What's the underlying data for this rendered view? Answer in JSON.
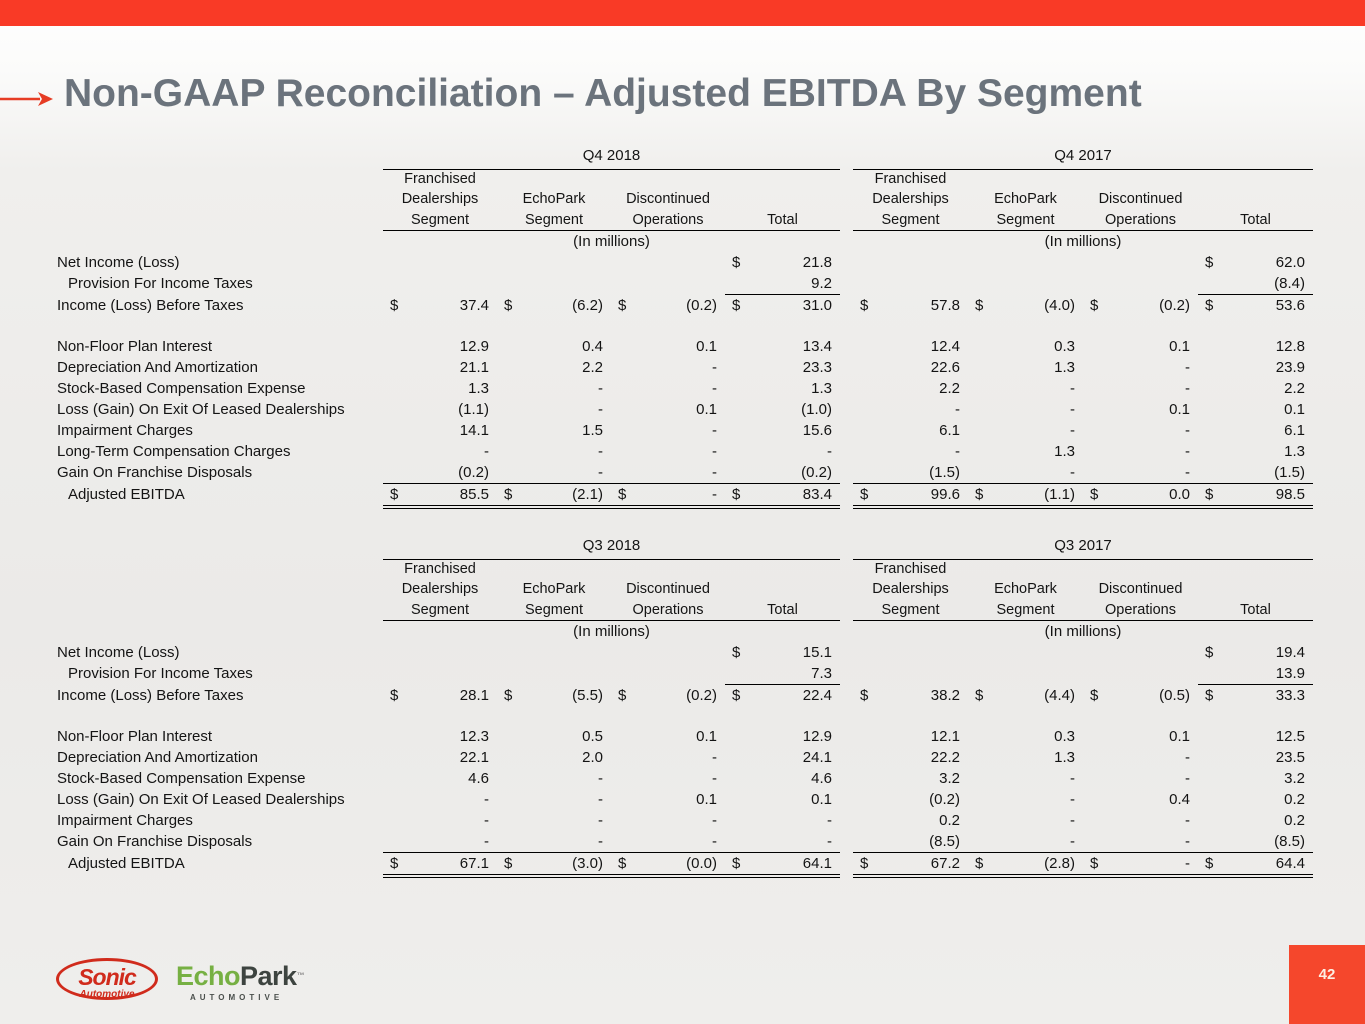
{
  "slide": {
    "title": "Non-GAAP Reconciliation – Adjusted EBITDA By Segment",
    "page_number": "42"
  },
  "colors": {
    "accent_red": "#f93a26",
    "title_gray": "#6b737c",
    "sonic_red": "#d02b1c",
    "echopark_green": "#76b043"
  },
  "footer": {
    "sonic_logo_word": "Sonic",
    "sonic_logo_sub": "Automotive",
    "echopark_logo_green": "Echo",
    "echopark_logo_dark": "Park",
    "echopark_tm": "™",
    "echopark_sub": "AUTOMOTIVE"
  },
  "table_headers": {
    "columns": [
      "Franchised\nDealerships\nSegment",
      "EchoPark\nSegment",
      "Discontinued\nOperations",
      "Total"
    ],
    "note": "(In millions)"
  },
  "tables": [
    {
      "quarters": [
        "Q4 2018",
        "Q4 2017"
      ],
      "rows": [
        {
          "label": "Net Income (Loss)",
          "cells": [
            [
              {},
              {},
              {},
              {
                "d": "$",
                "v": "21.8"
              }
            ],
            [
              {},
              {},
              {},
              {
                "d": "$",
                "v": "62.0"
              }
            ]
          ]
        },
        {
          "label": "Provision For Income Taxes",
          "indent": true,
          "cells": [
            [
              {},
              {},
              {},
              {
                "v": "9.2",
                "u": true
              }
            ],
            [
              {},
              {},
              {},
              {
                "v": "(8.4)",
                "u": true
              }
            ]
          ]
        },
        {
          "label": "Income (Loss) Before Taxes",
          "cells": [
            [
              {
                "d": "$",
                "v": "37.4"
              },
              {
                "d": "$",
                "v": "(6.2)"
              },
              {
                "d": "$",
                "v": "(0.2)"
              },
              {
                "d": "$",
                "v": "31.0"
              }
            ],
            [
              {
                "d": "$",
                "v": "57.8"
              },
              {
                "d": "$",
                "v": "(4.0)"
              },
              {
                "d": "$",
                "v": "(0.2)"
              },
              {
                "d": "$",
                "v": "53.6"
              }
            ]
          ]
        },
        {
          "blank": true
        },
        {
          "label": "Non-Floor Plan Interest",
          "cells": [
            [
              {
                "v": "12.9"
              },
              {
                "v": "0.4"
              },
              {
                "v": "0.1"
              },
              {
                "v": "13.4"
              }
            ],
            [
              {
                "v": "12.4"
              },
              {
                "v": "0.3"
              },
              {
                "v": "0.1"
              },
              {
                "v": "12.8"
              }
            ]
          ]
        },
        {
          "label": "Depreciation And Amortization",
          "cells": [
            [
              {
                "v": "21.1"
              },
              {
                "v": "2.2"
              },
              {
                "v": "-"
              },
              {
                "v": "23.3"
              }
            ],
            [
              {
                "v": "22.6"
              },
              {
                "v": "1.3"
              },
              {
                "v": "-"
              },
              {
                "v": "23.9"
              }
            ]
          ]
        },
        {
          "label": "Stock-Based Compensation Expense",
          "cells": [
            [
              {
                "v": "1.3"
              },
              {
                "v": "-"
              },
              {
                "v": "-"
              },
              {
                "v": "1.3"
              }
            ],
            [
              {
                "v": "2.2"
              },
              {
                "v": "-"
              },
              {
                "v": "-"
              },
              {
                "v": "2.2"
              }
            ]
          ]
        },
        {
          "label": "Loss (Gain) On Exit Of Leased Dealerships",
          "cells": [
            [
              {
                "v": "(1.1)"
              },
              {
                "v": "-"
              },
              {
                "v": "0.1"
              },
              {
                "v": "(1.0)"
              }
            ],
            [
              {
                "v": "-"
              },
              {
                "v": "-"
              },
              {
                "v": "0.1"
              },
              {
                "v": "0.1"
              }
            ]
          ]
        },
        {
          "label": "Impairment Charges",
          "cells": [
            [
              {
                "v": "14.1"
              },
              {
                "v": "1.5"
              },
              {
                "v": "-"
              },
              {
                "v": "15.6"
              }
            ],
            [
              {
                "v": "6.1"
              },
              {
                "v": "-"
              },
              {
                "v": "-"
              },
              {
                "v": "6.1"
              }
            ]
          ]
        },
        {
          "label": "Long-Term Compensation Charges",
          "cells": [
            [
              {
                "v": "-"
              },
              {
                "v": "-"
              },
              {
                "v": "-"
              },
              {
                "v": "-"
              }
            ],
            [
              {
                "v": "-"
              },
              {
                "v": "1.3"
              },
              {
                "v": "-"
              },
              {
                "v": "1.3"
              }
            ]
          ]
        },
        {
          "label": "Gain On Franchise Disposals",
          "rule": "single",
          "cells": [
            [
              {
                "v": "(0.2)"
              },
              {
                "v": "-"
              },
              {
                "v": "-"
              },
              {
                "v": "(0.2)"
              }
            ],
            [
              {
                "v": "(1.5)"
              },
              {
                "v": "-"
              },
              {
                "v": "-"
              },
              {
                "v": "(1.5)"
              }
            ]
          ]
        },
        {
          "label": "Adjusted EBITDA",
          "indent": true,
          "rule": "double",
          "cells": [
            [
              {
                "d": "$",
                "v": "85.5"
              },
              {
                "d": "$",
                "v": "(2.1)"
              },
              {
                "d": "$",
                "v": "-"
              },
              {
                "d": "$",
                "v": "83.4"
              }
            ],
            [
              {
                "d": "$",
                "v": "99.6"
              },
              {
                "d": "$",
                "v": "(1.1)"
              },
              {
                "d": "$",
                "v": "0.0"
              },
              {
                "d": "$",
                "v": "98.5"
              }
            ]
          ]
        }
      ]
    },
    {
      "quarters": [
        "Q3 2018",
        "Q3 2017"
      ],
      "rows": [
        {
          "label": "Net Income (Loss)",
          "cells": [
            [
              {},
              {},
              {},
              {
                "d": "$",
                "v": "15.1"
              }
            ],
            [
              {},
              {},
              {},
              {
                "d": "$",
                "v": "19.4"
              }
            ]
          ]
        },
        {
          "label": "Provision For Income Taxes",
          "indent": true,
          "cells": [
            [
              {},
              {},
              {},
              {
                "v": "7.3",
                "u": true
              }
            ],
            [
              {},
              {},
              {},
              {
                "v": "13.9",
                "u": true
              }
            ]
          ]
        },
        {
          "label": "Income (Loss) Before Taxes",
          "cells": [
            [
              {
                "d": "$",
                "v": "28.1"
              },
              {
                "d": "$",
                "v": "(5.5)"
              },
              {
                "d": "$",
                "v": "(0.2)"
              },
              {
                "d": "$",
                "v": "22.4"
              }
            ],
            [
              {
                "d": "$",
                "v": "38.2"
              },
              {
                "d": "$",
                "v": "(4.4)"
              },
              {
                "d": "$",
                "v": "(0.5)"
              },
              {
                "d": "$",
                "v": "33.3"
              }
            ]
          ]
        },
        {
          "blank": true
        },
        {
          "label": "Non-Floor Plan Interest",
          "cells": [
            [
              {
                "v": "12.3"
              },
              {
                "v": "0.5"
              },
              {
                "v": "0.1"
              },
              {
                "v": "12.9"
              }
            ],
            [
              {
                "v": "12.1"
              },
              {
                "v": "0.3"
              },
              {
                "v": "0.1"
              },
              {
                "v": "12.5"
              }
            ]
          ]
        },
        {
          "label": "Depreciation And Amortization",
          "cells": [
            [
              {
                "v": "22.1"
              },
              {
                "v": "2.0"
              },
              {
                "v": "-"
              },
              {
                "v": "24.1"
              }
            ],
            [
              {
                "v": "22.2"
              },
              {
                "v": "1.3"
              },
              {
                "v": "-"
              },
              {
                "v": "23.5"
              }
            ]
          ]
        },
        {
          "label": "Stock-Based Compensation Expense",
          "cells": [
            [
              {
                "v": "4.6"
              },
              {
                "v": "-"
              },
              {
                "v": "-"
              },
              {
                "v": "4.6"
              }
            ],
            [
              {
                "v": "3.2"
              },
              {
                "v": "-"
              },
              {
                "v": "-"
              },
              {
                "v": "3.2"
              }
            ]
          ]
        },
        {
          "label": "Loss (Gain) On Exit Of Leased Dealerships",
          "cells": [
            [
              {
                "v": "-"
              },
              {
                "v": "-"
              },
              {
                "v": "0.1"
              },
              {
                "v": "0.1"
              }
            ],
            [
              {
                "v": "(0.2)"
              },
              {
                "v": "-"
              },
              {
                "v": "0.4"
              },
              {
                "v": "0.2"
              }
            ]
          ]
        },
        {
          "label": "Impairment Charges",
          "cells": [
            [
              {
                "v": "-"
              },
              {
                "v": "-"
              },
              {
                "v": "-"
              },
              {
                "v": "-"
              }
            ],
            [
              {
                "v": "0.2"
              },
              {
                "v": "-"
              },
              {
                "v": "-"
              },
              {
                "v": "0.2"
              }
            ]
          ]
        },
        {
          "label": "Gain On Franchise Disposals",
          "rule": "single",
          "cells": [
            [
              {
                "v": "-"
              },
              {
                "v": "-"
              },
              {
                "v": "-"
              },
              {
                "v": "-"
              }
            ],
            [
              {
                "v": "(8.5)"
              },
              {
                "v": "-"
              },
              {
                "v": "-"
              },
              {
                "v": "(8.5)"
              }
            ]
          ]
        },
        {
          "label": "Adjusted EBITDA",
          "indent": true,
          "rule": "double",
          "cells": [
            [
              {
                "d": "$",
                "v": "67.1"
              },
              {
                "d": "$",
                "v": "(3.0)"
              },
              {
                "d": "$",
                "v": "(0.0)"
              },
              {
                "d": "$",
                "v": "64.1"
              }
            ],
            [
              {
                "d": "$",
                "v": "67.2"
              },
              {
                "d": "$",
                "v": "(2.8)"
              },
              {
                "d": "$",
                "v": "-"
              },
              {
                "d": "$",
                "v": "64.4"
              }
            ]
          ]
        }
      ]
    }
  ]
}
